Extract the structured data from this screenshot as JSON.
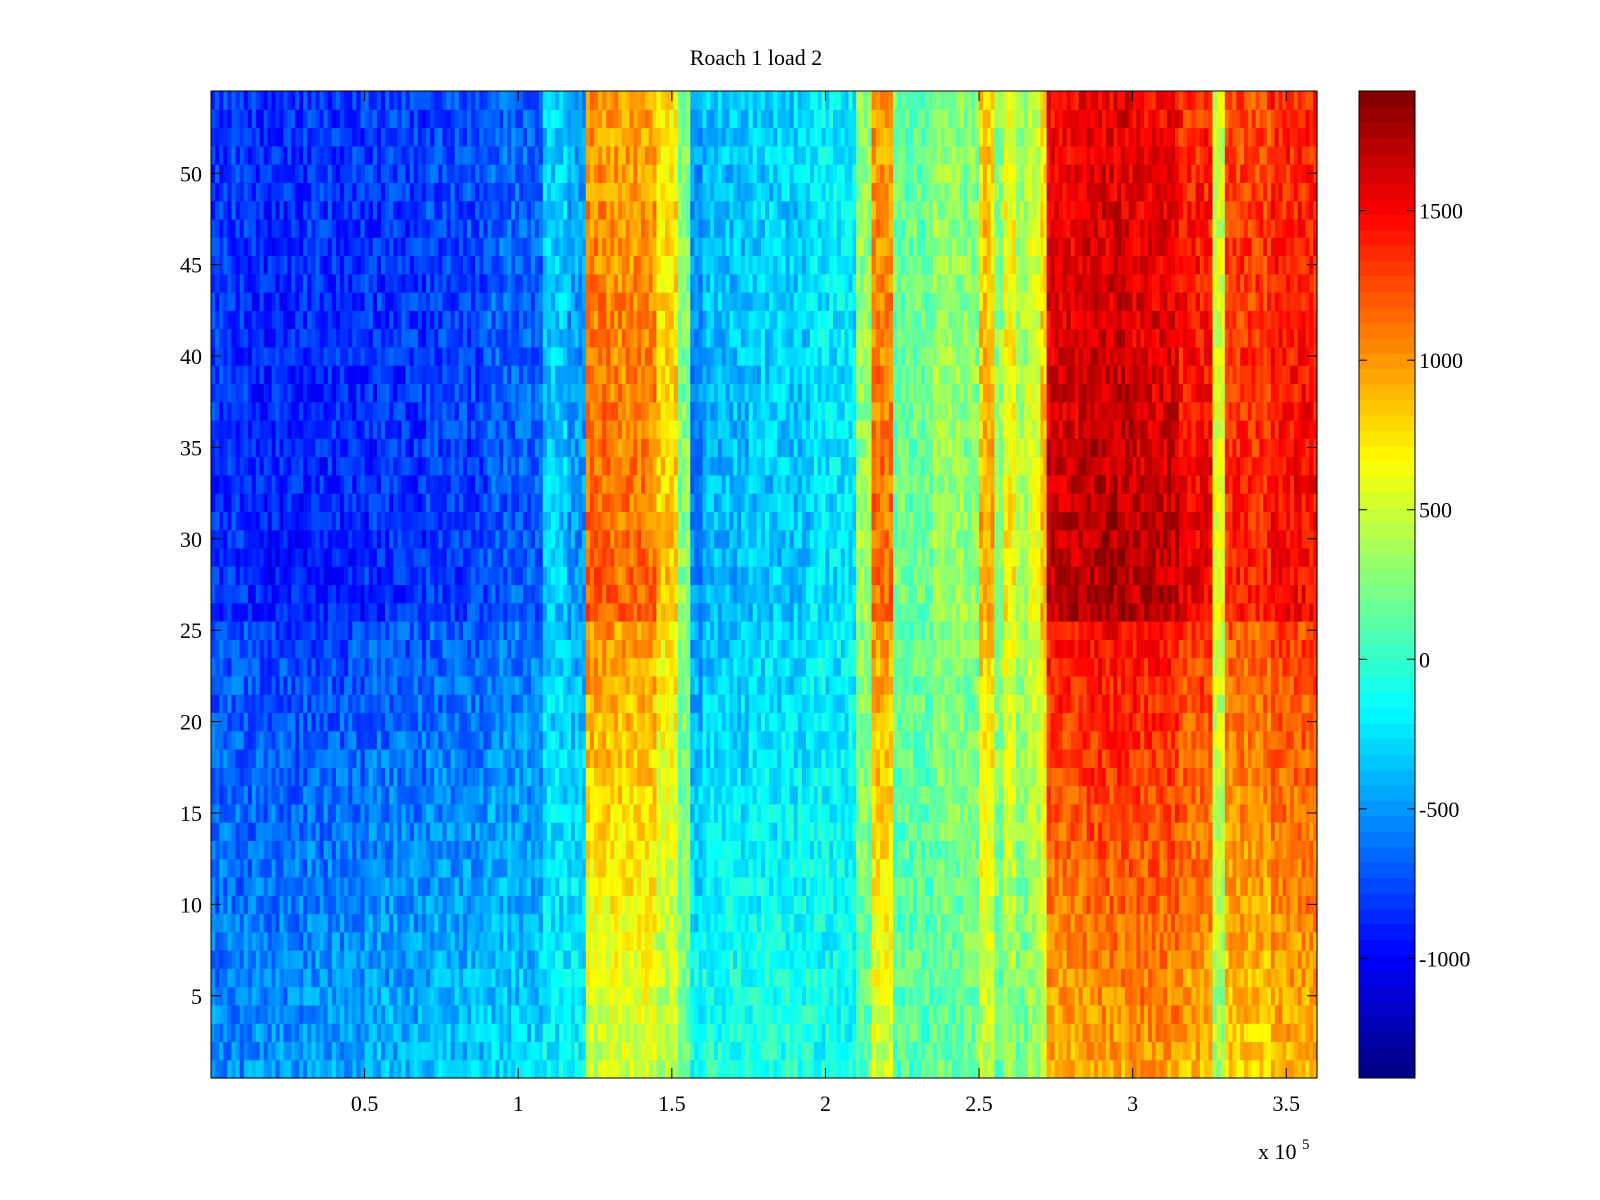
{
  "figure": {
    "background": "#ffffff"
  },
  "chart_data": {
    "type": "heatmap",
    "title": "Roach 1 load 2",
    "xlabel": "",
    "ylabel": "",
    "x_exponent_label": "x 10",
    "x_exponent_power": "5",
    "xlim": [
      0,
      3.6
    ],
    "ylim": [
      0.5,
      54.5
    ],
    "colorbar_lim": [
      -1400,
      1900
    ],
    "colormap": "jet",
    "x_ticks": [
      {
        "value": 0.5,
        "label": "0.5"
      },
      {
        "value": 1,
        "label": "1"
      },
      {
        "value": 1.5,
        "label": "1.5"
      },
      {
        "value": 2,
        "label": "2"
      },
      {
        "value": 2.5,
        "label": "2.5"
      },
      {
        "value": 3,
        "label": "3"
      },
      {
        "value": 3.5,
        "label": "3.5"
      }
    ],
    "y_ticks": [
      {
        "value": 5,
        "label": "5"
      },
      {
        "value": 10,
        "label": "10"
      },
      {
        "value": 15,
        "label": "15"
      },
      {
        "value": 20,
        "label": "20"
      },
      {
        "value": 25,
        "label": "25"
      },
      {
        "value": 30,
        "label": "30"
      },
      {
        "value": 35,
        "label": "35"
      },
      {
        "value": 40,
        "label": "40"
      },
      {
        "value": 45,
        "label": "45"
      },
      {
        "value": 50,
        "label": "50"
      }
    ],
    "colorbar_ticks": [
      {
        "value": -1000,
        "label": "-1000"
      },
      {
        "value": -500,
        "label": "-500"
      },
      {
        "value": 0,
        "label": "0"
      },
      {
        "value": 500,
        "label": "500"
      },
      {
        "value": 1000,
        "label": "1000"
      },
      {
        "value": 1500,
        "label": "1500"
      }
    ],
    "rows": 54,
    "columns": {
      "x_start": [
        0,
        0.12,
        0.3,
        0.5,
        0.7,
        0.9,
        1.08,
        1.16,
        1.22,
        1.3,
        1.45,
        1.52,
        1.56,
        1.6,
        1.75,
        1.95,
        2.1,
        2.15,
        2.22,
        2.35,
        2.45,
        2.5,
        2.55,
        2.58,
        2.62,
        2.66,
        2.7,
        2.72,
        2.85,
        3.0,
        3.15,
        3.26,
        3.3,
        3.45
      ],
      "value_row_1": [
        -550,
        -500,
        -450,
        -400,
        -350,
        -300,
        -200,
        -150,
        450,
        500,
        400,
        200,
        -100,
        -50,
        -50,
        -100,
        150,
        500,
        100,
        150,
        200,
        400,
        150,
        300,
        200,
        300,
        450,
        900,
        950,
        1000,
        900,
        350,
        800,
        900
      ],
      "value_row_27": [
        -850,
        -900,
        -900,
        -850,
        -800,
        -700,
        -350,
        -500,
        1200,
        1150,
        850,
        300,
        -550,
        -400,
        -350,
        -250,
        350,
        1150,
        200,
        350,
        300,
        950,
        350,
        700,
        400,
        600,
        900,
        1700,
        1750,
        1700,
        1550,
        600,
        1400,
        1500
      ],
      "value_row_54": [
        -800,
        -850,
        -800,
        -800,
        -750,
        -650,
        -300,
        -450,
        1000,
        950,
        700,
        250,
        -500,
        -350,
        -300,
        -200,
        300,
        1000,
        150,
        300,
        250,
        800,
        300,
        600,
        350,
        500,
        800,
        1500,
        1550,
        1500,
        1350,
        500,
        1250,
        1350
      ]
    },
    "approximate_pattern": "values vary by column bands; upper rows (about 26-54) stronger magnitude than lower rows (1-25)"
  }
}
